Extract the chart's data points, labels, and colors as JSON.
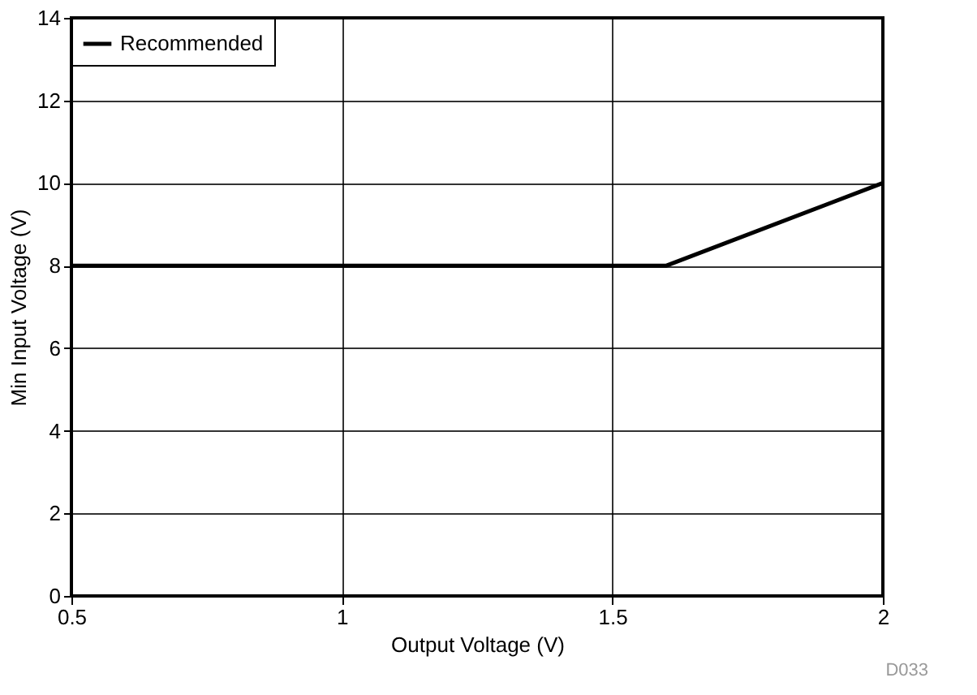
{
  "chart_data": {
    "type": "line",
    "xlabel": "Output Voltage (V)",
    "ylabel": "Min Input Voltage (V)",
    "x": [
      0.5,
      1.6,
      2
    ],
    "series": [
      {
        "name": "Recommended",
        "color": "#000000",
        "values": [
          8,
          8,
          10
        ]
      }
    ],
    "xlim": [
      0.5,
      2
    ],
    "xticks": [
      0.5,
      1,
      1.5,
      2
    ],
    "ylim": [
      0,
      14
    ],
    "yticks": [
      0,
      2,
      4,
      6,
      8,
      10,
      12,
      14
    ],
    "grid": true,
    "legend": "top left",
    "marker": "none",
    "line_style": "solid",
    "annotations": [
      "D033"
    ]
  }
}
